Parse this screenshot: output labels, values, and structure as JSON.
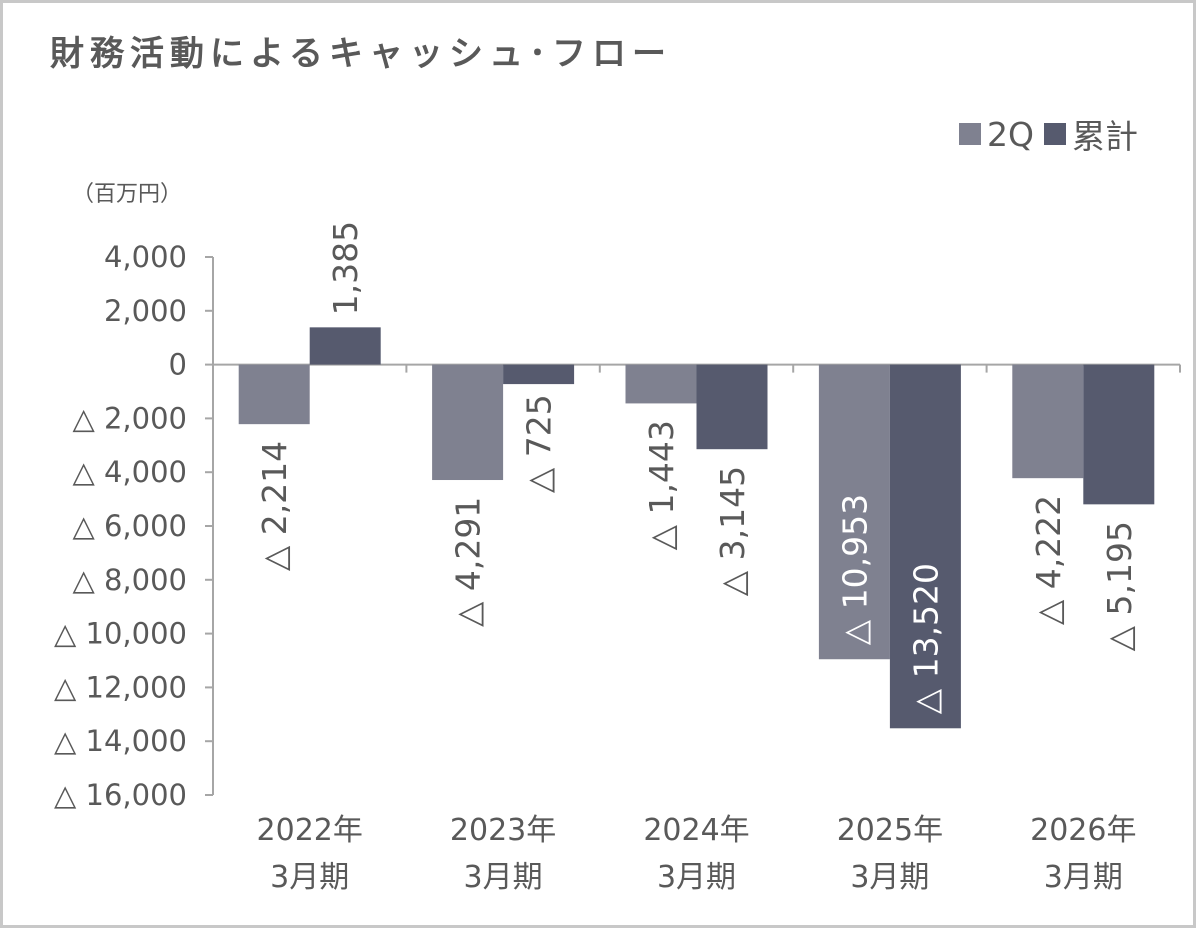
{
  "chart_data": {
    "type": "bar",
    "title": "財務活動によるキャッシュ･フロー",
    "unit_label": "（百万円）",
    "categories": [
      [
        "2022年",
        "3月期"
      ],
      [
        "2023年",
        "3月期"
      ],
      [
        "2024年",
        "3月期"
      ],
      [
        "2025年",
        "3月期"
      ],
      [
        "2026年",
        "3月期"
      ]
    ],
    "series": [
      {
        "name": "2Q",
        "color": "#7f8190",
        "values": [
          -2214,
          -4291,
          -1443,
          -10953,
          -4222
        ],
        "labels": [
          "△ 2,214",
          "△ 4,291",
          "△ 1,443",
          "△ 10,953",
          "△ 4,222"
        ],
        "label_color": "#595959",
        "label_color_inside": "#ffffff"
      },
      {
        "name": "累計",
        "color": "#565a6e",
        "values": [
          1385,
          -725,
          -3145,
          -13520,
          -5195
        ],
        "labels": [
          "1,385",
          "△ 725",
          "△ 3,145",
          "△ 13,520",
          "△ 5,195"
        ],
        "label_color": "#595959",
        "label_color_inside": "#ffffff"
      }
    ],
    "ylim": [
      -16000,
      4000
    ],
    "yticks": [
      4000,
      2000,
      0,
      -2000,
      -4000,
      -6000,
      -8000,
      -10000,
      -12000,
      -14000,
      -16000
    ],
    "ytick_labels": [
      "4,000",
      "2,000",
      "0",
      "△ 2,000",
      "△ 4,000",
      "△ 6,000",
      "△ 8,000",
      "△ 10,000",
      "△ 12,000",
      "△ 14,000",
      "△ 16,000"
    ],
    "legend_position": "top-right",
    "grid": false,
    "axis_color": "#a6a6a6"
  }
}
